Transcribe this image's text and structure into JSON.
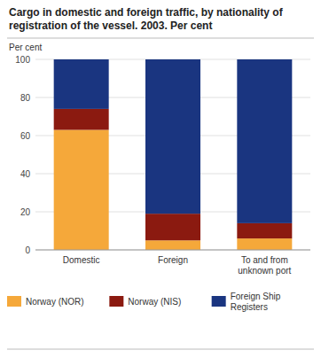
{
  "chart_data": {
    "type": "bar",
    "stacked": true,
    "title": "Cargo in domestic and foreign traffic, by nationality of\nregistration of the vessel. 2003. Per cent",
    "y_label": "Per cent",
    "categories": [
      "Domestic",
      "Foreign",
      "To and from\nunknown port"
    ],
    "series": [
      {
        "name": "Norway (NOR)",
        "color": "#F5A83A",
        "values": [
          63,
          5,
          6
        ]
      },
      {
        "name": "Norway (NIS)",
        "color": "#8B1A10",
        "values": [
          11,
          14,
          8
        ]
      },
      {
        "name": "Foreign Ship\nRegisters",
        "color": "#1A3580",
        "values": [
          26,
          81,
          86
        ]
      }
    ],
    "ylim": [
      0,
      100
    ],
    "yticks": [
      0,
      20,
      40,
      60,
      80,
      100
    ],
    "grid": true,
    "legend": "bottom"
  }
}
